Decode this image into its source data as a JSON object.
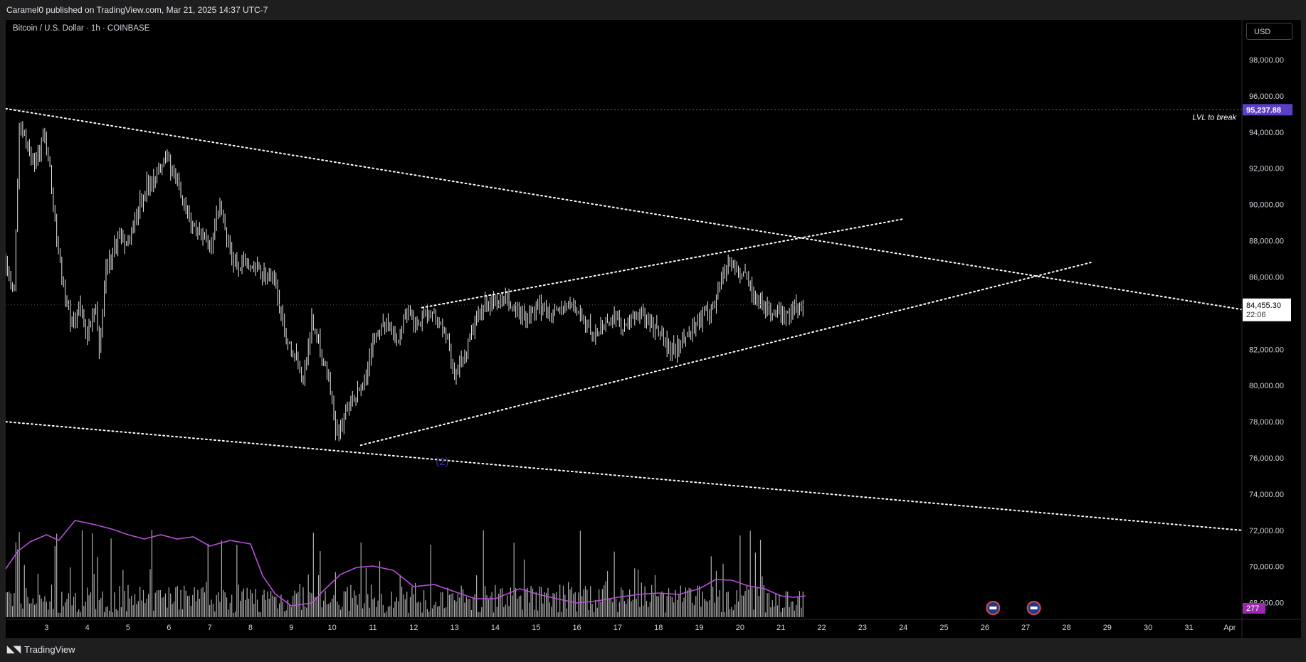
{
  "header": {
    "publish_line": "Caramel0 published on TradingView.com, Mar 21, 2025 14:37 UTC-7"
  },
  "symbol": {
    "title": "Bitcoin / U.S. Dollar · 1h · COINBASE",
    "currency": "USD"
  },
  "footer": {
    "brand": "TradingView",
    "logo_icon": "tradingview-logo-icon"
  },
  "colors": {
    "bg": "#000000",
    "level": "#6c4bd8",
    "level_label_bg": "#5b3fc7",
    "volume_ma": "#b84fd6",
    "candle": "#e6e6e6",
    "trendline": "#ffffff"
  },
  "chart_data": {
    "type": "candlestick",
    "symbol": "Bitcoin / U.S. Dollar",
    "interval": "1h",
    "exchange": "COINBASE",
    "ylim": [
      67200,
      100200
    ],
    "y_ticks": [
      68000,
      70000,
      72000,
      74000,
      76000,
      78000,
      80000,
      82000,
      84000,
      86000,
      88000,
      90000,
      92000,
      94000,
      96000,
      98000
    ],
    "y_tick_labels": [
      "68,000.00",
      "70,000.00",
      "72,000.00",
      "74,000.00",
      "76,000.00",
      "78,000.00",
      "80,000.00",
      "82,000.00",
      "84,000.00",
      "86,000.00",
      "88,000.00",
      "90,000.00",
      "92,000.00",
      "94,000.00",
      "96,000.00",
      "98,000.00"
    ],
    "x_range_days": [
      2.0,
      32.3
    ],
    "x_ticks": [
      {
        "label": "3",
        "day": 3
      },
      {
        "label": "4",
        "day": 4
      },
      {
        "label": "5",
        "day": 5
      },
      {
        "label": "6",
        "day": 6
      },
      {
        "label": "7",
        "day": 7
      },
      {
        "label": "8",
        "day": 8
      },
      {
        "label": "9",
        "day": 9
      },
      {
        "label": "10",
        "day": 10
      },
      {
        "label": "11",
        "day": 11
      },
      {
        "label": "12",
        "day": 12
      },
      {
        "label": "13",
        "day": 13
      },
      {
        "label": "14",
        "day": 14
      },
      {
        "label": "15",
        "day": 15
      },
      {
        "label": "16",
        "day": 16
      },
      {
        "label": "17",
        "day": 17
      },
      {
        "label": "18",
        "day": 18
      },
      {
        "label": "19",
        "day": 19
      },
      {
        "label": "20",
        "day": 20
      },
      {
        "label": "21",
        "day": 21
      },
      {
        "label": "22",
        "day": 22
      },
      {
        "label": "23",
        "day": 23
      },
      {
        "label": "24",
        "day": 24
      },
      {
        "label": "25",
        "day": 25
      },
      {
        "label": "26",
        "day": 26
      },
      {
        "label": "27",
        "day": 27
      },
      {
        "label": "28",
        "day": 28
      },
      {
        "label": "29",
        "day": 29
      },
      {
        "label": "30",
        "day": 30
      },
      {
        "label": "31",
        "day": 31
      },
      {
        "label": "Apr",
        "day": 32
      }
    ],
    "price_path": [
      [
        2.0,
        86500
      ],
      [
        2.2,
        85200
      ],
      [
        2.35,
        94800
      ],
      [
        2.5,
        93600
      ],
      [
        2.7,
        92400
      ],
      [
        2.95,
        93800
      ],
      [
        3.1,
        91500
      ],
      [
        3.3,
        87000
      ],
      [
        3.6,
        83200
      ],
      [
        3.8,
        84400
      ],
      [
        4.0,
        82800
      ],
      [
        4.2,
        84200
      ],
      [
        4.3,
        81800
      ],
      [
        4.45,
        86500
      ],
      [
        4.6,
        87200
      ],
      [
        4.8,
        88400
      ],
      [
        5.0,
        87800
      ],
      [
        5.3,
        90200
      ],
      [
        5.5,
        91200
      ],
      [
        5.8,
        92000
      ],
      [
        5.95,
        92800
      ],
      [
        6.1,
        91500
      ],
      [
        6.3,
        90800
      ],
      [
        6.5,
        89000
      ],
      [
        6.75,
        88600
      ],
      [
        7.0,
        87500
      ],
      [
        7.25,
        90000
      ],
      [
        7.4,
        88200
      ],
      [
        7.6,
        86600
      ],
      [
        7.8,
        86800
      ],
      [
        8.1,
        86400
      ],
      [
        8.4,
        86200
      ],
      [
        8.6,
        85800
      ],
      [
        8.85,
        82800
      ],
      [
        9.1,
        81800
      ],
      [
        9.3,
        80400
      ],
      [
        9.5,
        83600
      ],
      [
        9.7,
        82200
      ],
      [
        9.95,
        80000
      ],
      [
        10.1,
        77300
      ],
      [
        10.3,
        78200
      ],
      [
        10.45,
        78800
      ],
      [
        10.65,
        79600
      ],
      [
        10.85,
        80600
      ],
      [
        11.0,
        82800
      ],
      [
        11.3,
        83400
      ],
      [
        11.6,
        82600
      ],
      [
        11.85,
        84200
      ],
      [
        12.05,
        83300
      ],
      [
        12.3,
        84100
      ],
      [
        12.55,
        83800
      ],
      [
        12.8,
        82600
      ],
      [
        13.0,
        80700
      ],
      [
        13.25,
        81700
      ],
      [
        13.5,
        83400
      ],
      [
        13.75,
        84400
      ],
      [
        13.95,
        84500
      ],
      [
        14.2,
        84700
      ],
      [
        14.5,
        84200
      ],
      [
        14.8,
        83700
      ],
      [
        15.1,
        84300
      ],
      [
        15.4,
        84100
      ],
      [
        15.7,
        84300
      ],
      [
        15.95,
        84400
      ],
      [
        16.15,
        83600
      ],
      [
        16.4,
        82800
      ],
      [
        16.65,
        83300
      ],
      [
        16.9,
        83900
      ],
      [
        17.15,
        83200
      ],
      [
        17.4,
        83600
      ],
      [
        17.6,
        84100
      ],
      [
        17.85,
        83300
      ],
      [
        18.1,
        82600
      ],
      [
        18.3,
        81800
      ],
      [
        18.55,
        82400
      ],
      [
        18.8,
        83100
      ],
      [
        19.05,
        83700
      ],
      [
        19.3,
        84200
      ],
      [
        19.55,
        86000
      ],
      [
        19.75,
        86800
      ],
      [
        19.95,
        86400
      ],
      [
        20.15,
        85900
      ],
      [
        20.4,
        84800
      ],
      [
        20.6,
        84300
      ],
      [
        20.85,
        84000
      ],
      [
        21.05,
        83900
      ],
      [
        21.3,
        84200
      ],
      [
        21.55,
        84455
      ]
    ],
    "volume_ma_path": [
      [
        2.0,
        70
      ],
      [
        2.3,
        95
      ],
      [
        2.6,
        108
      ],
      [
        3.0,
        118
      ],
      [
        3.3,
        110
      ],
      [
        3.7,
        138
      ],
      [
        4.2,
        132
      ],
      [
        4.6,
        126
      ],
      [
        5.0,
        118
      ],
      [
        5.4,
        112
      ],
      [
        5.8,
        118
      ],
      [
        6.2,
        112
      ],
      [
        6.6,
        115
      ],
      [
        7.0,
        102
      ],
      [
        7.5,
        110
      ],
      [
        8.0,
        105
      ],
      [
        8.3,
        60
      ],
      [
        8.6,
        35
      ],
      [
        9.0,
        18
      ],
      [
        9.5,
        22
      ],
      [
        9.8,
        40
      ],
      [
        10.2,
        62
      ],
      [
        10.6,
        72
      ],
      [
        11.0,
        74
      ],
      [
        11.5,
        68
      ],
      [
        12.0,
        45
      ],
      [
        12.5,
        48
      ],
      [
        13.0,
        38
      ],
      [
        13.5,
        28
      ],
      [
        14.0,
        28
      ],
      [
        14.6,
        42
      ],
      [
        15.0,
        35
      ],
      [
        15.5,
        28
      ],
      [
        16.0,
        22
      ],
      [
        16.5,
        25
      ],
      [
        17.0,
        30
      ],
      [
        17.5,
        34
      ],
      [
        18.0,
        36
      ],
      [
        18.5,
        34
      ],
      [
        19.0,
        42
      ],
      [
        19.4,
        55
      ],
      [
        19.8,
        54
      ],
      [
        20.2,
        46
      ],
      [
        20.6,
        42
      ],
      [
        21.0,
        32
      ],
      [
        21.3,
        30
      ],
      [
        21.6,
        32
      ]
    ],
    "current_price": 84455.3,
    "current_price_label": "84,455.30",
    "countdown": "22:06",
    "volume_ma_label": "277",
    "level": {
      "price": 95237.88,
      "label": "95,237.88",
      "text": "LVL to break"
    },
    "trendlines": [
      {
        "name": "upper-resistance",
        "p1": [
          2.0,
          95300
        ],
        "p2": [
          32.3,
          84200
        ]
      },
      {
        "name": "lower-channel",
        "p1": [
          2.0,
          78000
        ],
        "p2": [
          32.3,
          72000
        ]
      },
      {
        "name": "rising-support",
        "p1": [
          10.7,
          76700
        ],
        "p2": [
          28.6,
          86800
        ]
      },
      {
        "name": "upper-rising",
        "p1": [
          12.2,
          84300
        ],
        "p2": [
          24.0,
          89200
        ]
      }
    ],
    "annotations": [
      {
        "text": "(2)",
        "day": 12.7,
        "price": 75600,
        "color": "#3d2fa8"
      }
    ],
    "event_markers": [
      {
        "day": 26.2,
        "icon": "us-flag-icon"
      },
      {
        "day": 27.2,
        "icon": "us-flag-icon"
      }
    ]
  }
}
